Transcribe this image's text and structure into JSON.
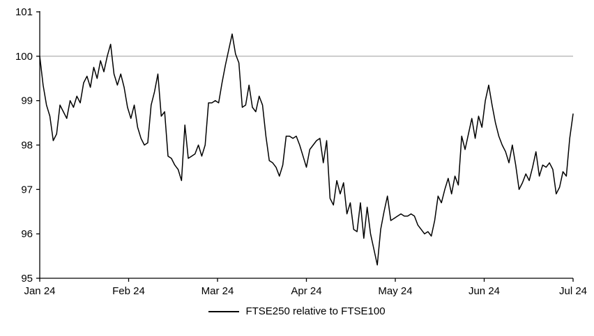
{
  "chart_data": {
    "type": "line",
    "title": "",
    "xlabel": "",
    "ylabel": "",
    "ylim": [
      95,
      101
    ],
    "y_ticks": [
      95,
      96,
      97,
      98,
      99,
      100,
      101
    ],
    "x_tick_labels": [
      "Jan 24",
      "Feb 24",
      "Mar 24",
      "Apr 24",
      "May 24",
      "Jun 24",
      "Jul 24"
    ],
    "grid": false,
    "legend_position": "bottom-center",
    "axis_color": "#000000",
    "reference_line": {
      "value": 100,
      "color": "#a6a6a6"
    },
    "series": [
      {
        "name": "FTSE250 relative to FTSE100",
        "color": "#000000",
        "values": [
          100.0,
          99.35,
          98.9,
          98.65,
          98.1,
          98.25,
          98.9,
          98.75,
          98.6,
          99.0,
          98.85,
          99.1,
          98.95,
          99.4,
          99.55,
          99.3,
          99.75,
          99.5,
          99.9,
          99.65,
          100.0,
          100.27,
          99.6,
          99.35,
          99.6,
          99.3,
          98.85,
          98.6,
          98.9,
          98.4,
          98.15,
          98.0,
          98.05,
          98.9,
          99.2,
          99.6,
          98.65,
          98.75,
          97.75,
          97.7,
          97.55,
          97.45,
          97.2,
          98.45,
          97.7,
          97.75,
          97.8,
          98.0,
          97.75,
          98.0,
          98.95,
          98.95,
          99.0,
          98.95,
          99.4,
          99.8,
          100.15,
          100.5,
          100.05,
          99.85,
          98.85,
          98.9,
          99.35,
          98.85,
          98.75,
          99.1,
          98.9,
          98.2,
          97.65,
          97.6,
          97.5,
          97.3,
          97.55,
          98.2,
          98.2,
          98.15,
          98.2,
          98.0,
          97.75,
          97.5,
          97.9,
          98.0,
          98.1,
          98.15,
          97.6,
          98.1,
          96.8,
          96.65,
          97.2,
          96.9,
          97.15,
          96.45,
          96.7,
          96.1,
          96.05,
          96.7,
          95.9,
          96.6,
          96.0,
          95.65,
          95.3,
          96.1,
          96.5,
          96.85,
          96.3,
          96.35,
          96.4,
          96.45,
          96.4,
          96.4,
          96.45,
          96.4,
          96.2,
          96.1,
          96.0,
          96.05,
          95.95,
          96.3,
          96.85,
          96.7,
          97.0,
          97.25,
          96.9,
          97.3,
          97.1,
          98.2,
          97.9,
          98.25,
          98.6,
          98.15,
          98.65,
          98.4,
          99.0,
          99.35,
          98.9,
          98.5,
          98.2,
          98.0,
          97.85,
          97.6,
          98.0,
          97.55,
          97.0,
          97.15,
          97.35,
          97.2,
          97.5,
          97.85,
          97.3,
          97.55,
          97.5,
          97.6,
          97.45,
          96.9,
          97.05,
          97.4,
          97.3,
          98.15,
          98.7
        ]
      }
    ]
  },
  "legend": {
    "label": "FTSE250 relative to FTSE100"
  }
}
